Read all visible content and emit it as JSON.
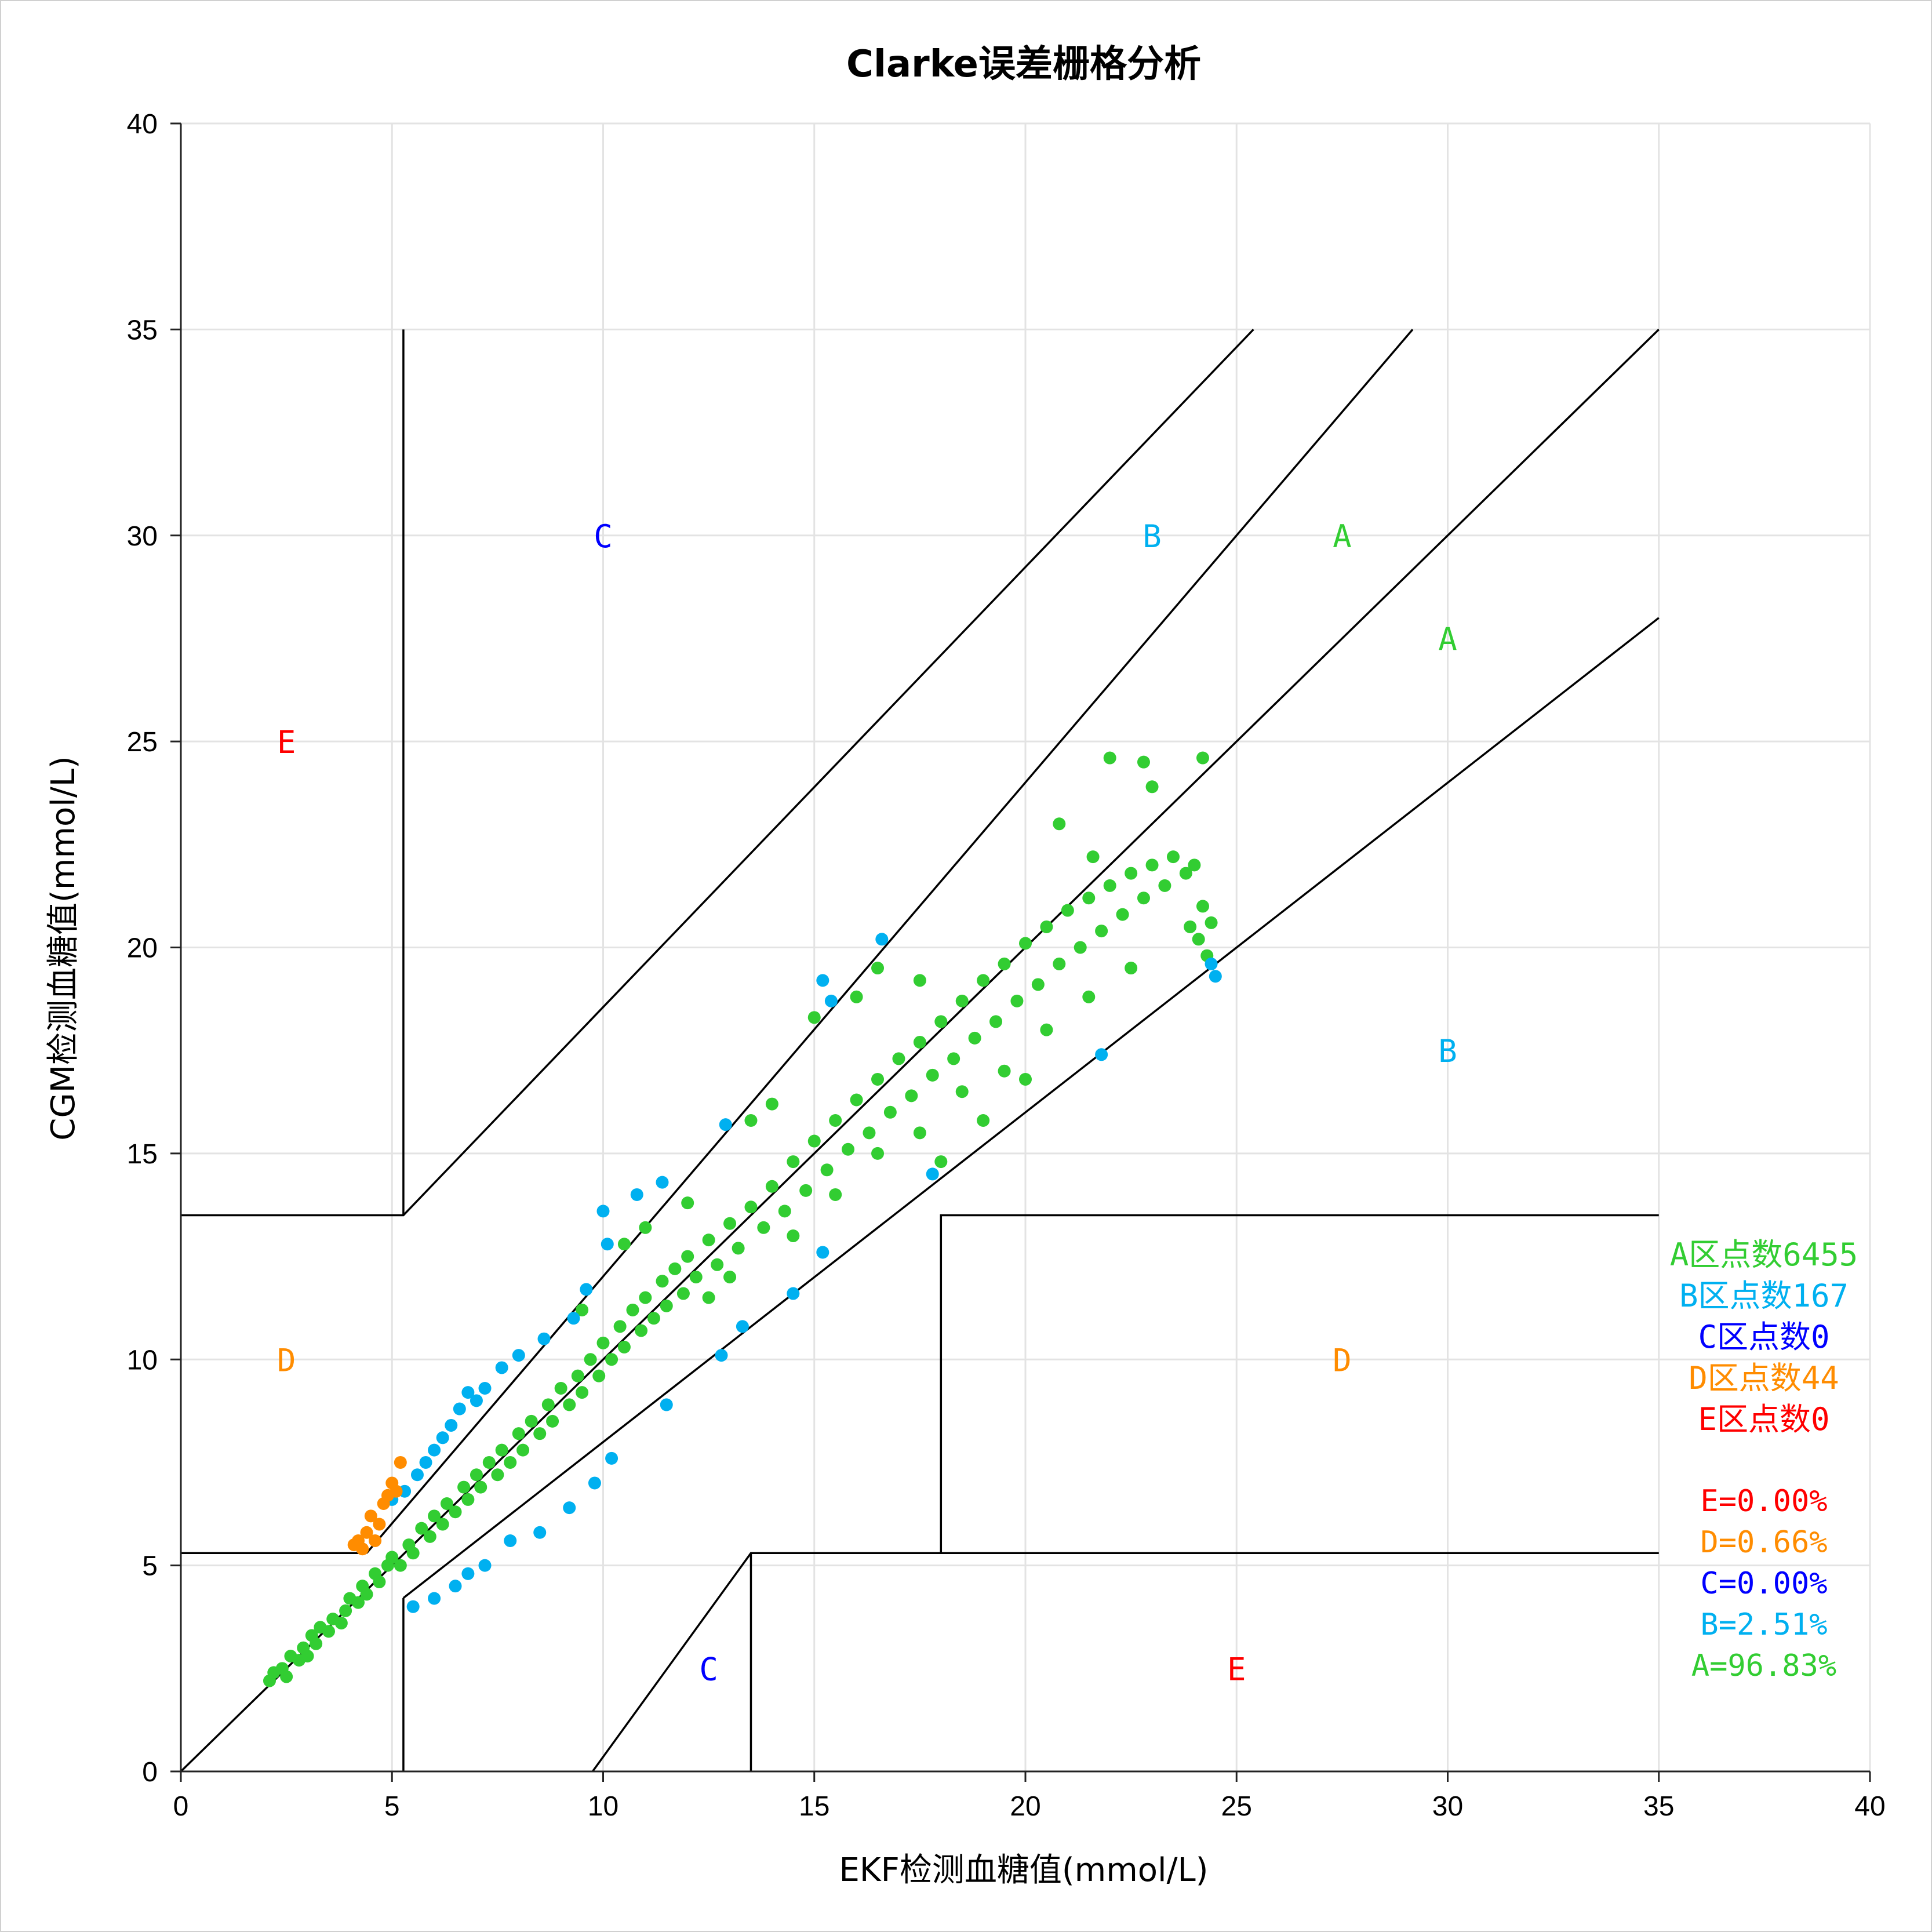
{
  "chart_data": {
    "type": "scatter",
    "title": "Clarke误差栅格分析",
    "xlabel": "EKF检测血糖值(mmol/L)",
    "ylabel": "CGM检测血糖值(mmol/L)",
    "xlim": [
      0,
      40
    ],
    "ylim": [
      0,
      40
    ],
    "x_ticks": [
      "0",
      "5",
      "10",
      "15",
      "20",
      "25",
      "30",
      "35",
      "40"
    ],
    "y_ticks": [
      "0",
      "5",
      "10",
      "15",
      "20",
      "25",
      "30",
      "35",
      "40"
    ],
    "grid": true,
    "colors": {
      "A": "#32cd32",
      "B": "#00b0f0",
      "C": "#0000ff",
      "D": "#ff8c00",
      "E": "#ff0000"
    },
    "zone_labels": [
      {
        "text": "E",
        "zone": "E",
        "x": 2.5,
        "y": 25
      },
      {
        "text": "C",
        "zone": "C",
        "x": 10,
        "y": 30
      },
      {
        "text": "B",
        "zone": "B",
        "x": 23,
        "y": 30
      },
      {
        "text": "A",
        "zone": "A",
        "x": 27.5,
        "y": 30
      },
      {
        "text": "A",
        "zone": "A",
        "x": 30,
        "y": 27.5
      },
      {
        "text": "B",
        "zone": "B",
        "x": 30,
        "y": 17.5
      },
      {
        "text": "D",
        "zone": "D",
        "x": 2.5,
        "y": 10
      },
      {
        "text": "D",
        "zone": "D",
        "x": 27.5,
        "y": 10
      },
      {
        "text": "C",
        "zone": "C",
        "x": 12.5,
        "y": 2.5
      },
      {
        "text": "E",
        "zone": "E",
        "x": 25,
        "y": 2.5
      }
    ],
    "zone_boundaries": [
      {
        "points": [
          [
            0,
            0
          ],
          [
            35,
            35
          ]
        ]
      },
      {
        "points": [
          [
            5.27,
            4.21
          ],
          [
            35,
            28
          ]
        ]
      },
      {
        "points": [
          [
            4.4,
            5.3
          ],
          [
            29.17,
            35
          ]
        ]
      },
      {
        "points": [
          [
            0,
            13.5
          ],
          [
            5.27,
            13.5
          ],
          [
            25.4,
            35
          ]
        ]
      },
      {
        "points": [
          [
            0,
            5.3
          ],
          [
            4.4,
            5.3
          ]
        ]
      },
      {
        "points": [
          [
            5.27,
            0
          ],
          [
            5.27,
            4.21
          ]
        ]
      },
      {
        "points": [
          [
            5.27,
            13.5
          ],
          [
            5.27,
            35
          ]
        ]
      },
      {
        "points": [
          [
            9.75,
            0
          ],
          [
            13.5,
            5.3
          ],
          [
            35,
            5.3
          ]
        ]
      },
      {
        "points": [
          [
            13.5,
            0
          ],
          [
            13.5,
            5.3
          ]
        ]
      },
      {
        "points": [
          [
            18,
            5.3
          ],
          [
            18,
            13.5
          ],
          [
            35,
            13.5
          ]
        ]
      }
    ],
    "series": [
      {
        "name": "A",
        "zone": "A",
        "values": [
          [
            2.1,
            2.2
          ],
          [
            2.2,
            2.4
          ],
          [
            2.4,
            2.5
          ],
          [
            2.5,
            2.3
          ],
          [
            2.6,
            2.8
          ],
          [
            2.8,
            2.7
          ],
          [
            2.9,
            3.0
          ],
          [
            3.0,
            2.8
          ],
          [
            3.1,
            3.3
          ],
          [
            3.2,
            3.1
          ],
          [
            3.3,
            3.5
          ],
          [
            3.5,
            3.4
          ],
          [
            3.6,
            3.7
          ],
          [
            3.8,
            3.6
          ],
          [
            3.9,
            3.9
          ],
          [
            4.0,
            4.2
          ],
          [
            4.2,
            4.1
          ],
          [
            4.3,
            4.5
          ],
          [
            4.4,
            4.3
          ],
          [
            4.6,
            4.8
          ],
          [
            4.7,
            4.6
          ],
          [
            4.9,
            5.0
          ],
          [
            5.0,
            5.2
          ],
          [
            5.2,
            5.0
          ],
          [
            5.4,
            5.5
          ],
          [
            5.5,
            5.3
          ],
          [
            5.7,
            5.9
          ],
          [
            5.9,
            5.7
          ],
          [
            6.0,
            6.2
          ],
          [
            6.2,
            6.0
          ],
          [
            6.3,
            6.5
          ],
          [
            6.5,
            6.3
          ],
          [
            6.7,
            6.9
          ],
          [
            6.8,
            6.6
          ],
          [
            7.0,
            7.2
          ],
          [
            7.1,
            6.9
          ],
          [
            7.3,
            7.5
          ],
          [
            7.5,
            7.2
          ],
          [
            7.6,
            7.8
          ],
          [
            7.8,
            7.5
          ],
          [
            8.0,
            8.2
          ],
          [
            8.1,
            7.8
          ],
          [
            8.3,
            8.5
          ],
          [
            8.5,
            8.2
          ],
          [
            8.7,
            8.9
          ],
          [
            8.8,
            8.5
          ],
          [
            9.0,
            9.3
          ],
          [
            9.2,
            8.9
          ],
          [
            9.4,
            9.6
          ],
          [
            9.5,
            9.2
          ],
          [
            9.7,
            10.0
          ],
          [
            9.9,
            9.6
          ],
          [
            10.0,
            10.4
          ],
          [
            10.2,
            10.0
          ],
          [
            10.4,
            10.8
          ],
          [
            10.5,
            10.3
          ],
          [
            10.7,
            11.2
          ],
          [
            10.9,
            10.7
          ],
          [
            11.0,
            11.5
          ],
          [
            11.2,
            11.0
          ],
          [
            11.4,
            11.9
          ],
          [
            11.5,
            11.3
          ],
          [
            11.7,
            12.2
          ],
          [
            11.9,
            11.6
          ],
          [
            12.0,
            12.5
          ],
          [
            12.2,
            12.0
          ],
          [
            12.5,
            12.9
          ],
          [
            12.7,
            12.3
          ],
          [
            13.0,
            13.3
          ],
          [
            13.2,
            12.7
          ],
          [
            13.5,
            13.7
          ],
          [
            13.8,
            13.2
          ],
          [
            14.0,
            14.2
          ],
          [
            14.3,
            13.6
          ],
          [
            14.5,
            14.8
          ],
          [
            14.8,
            14.1
          ],
          [
            15.0,
            15.3
          ],
          [
            15.3,
            14.6
          ],
          [
            15.5,
            15.8
          ],
          [
            15.8,
            15.1
          ],
          [
            16.0,
            16.3
          ],
          [
            16.3,
            15.5
          ],
          [
            16.5,
            16.8
          ],
          [
            16.8,
            16.0
          ],
          [
            17.0,
            17.3
          ],
          [
            17.3,
            16.4
          ],
          [
            17.5,
            17.7
          ],
          [
            17.8,
            16.9
          ],
          [
            18.0,
            18.2
          ],
          [
            18.3,
            17.3
          ],
          [
            18.5,
            18.7
          ],
          [
            18.8,
            17.8
          ],
          [
            19.0,
            19.2
          ],
          [
            19.3,
            18.2
          ],
          [
            19.5,
            19.6
          ],
          [
            19.8,
            18.7
          ],
          [
            20.0,
            20.1
          ],
          [
            20.3,
            19.1
          ],
          [
            20.5,
            20.5
          ],
          [
            20.8,
            19.6
          ],
          [
            21.0,
            20.9
          ],
          [
            21.3,
            20.0
          ],
          [
            21.5,
            21.2
          ],
          [
            21.8,
            20.4
          ],
          [
            22.0,
            21.5
          ],
          [
            22.3,
            20.8
          ],
          [
            22.5,
            21.8
          ],
          [
            22.8,
            21.2
          ],
          [
            23.0,
            22.0
          ],
          [
            23.3,
            21.5
          ],
          [
            23.5,
            22.2
          ],
          [
            23.8,
            21.8
          ],
          [
            24.0,
            22.0
          ],
          [
            24.2,
            21.0
          ],
          [
            24.4,
            20.6
          ],
          [
            24.3,
            19.8
          ],
          [
            24.1,
            20.2
          ],
          [
            23.9,
            20.5
          ],
          [
            22.0,
            24.6
          ],
          [
            22.8,
            24.5
          ],
          [
            23.0,
            23.9
          ],
          [
            24.2,
            24.6
          ],
          [
            20.8,
            23.0
          ],
          [
            21.6,
            22.2
          ],
          [
            16.0,
            18.8
          ],
          [
            15.0,
            18.3
          ],
          [
            16.5,
            19.5
          ],
          [
            17.5,
            19.2
          ],
          [
            14.0,
            16.2
          ],
          [
            13.5,
            15.8
          ],
          [
            12.0,
            13.8
          ],
          [
            11.0,
            13.2
          ],
          [
            10.5,
            12.8
          ],
          [
            9.5,
            11.2
          ],
          [
            12.5,
            11.5
          ],
          [
            13.0,
            12.0
          ],
          [
            14.5,
            13.0
          ],
          [
            15.5,
            14.0
          ],
          [
            16.5,
            15.0
          ],
          [
            17.5,
            15.5
          ],
          [
            18.5,
            16.5
          ],
          [
            19.5,
            17.0
          ],
          [
            20.5,
            18.0
          ],
          [
            21.5,
            18.8
          ],
          [
            22.5,
            19.5
          ],
          [
            19.0,
            15.8
          ],
          [
            20.0,
            16.8
          ],
          [
            18.0,
            14.8
          ]
        ]
      },
      {
        "name": "B",
        "zone": "B",
        "values": [
          [
            5.0,
            6.6
          ],
          [
            5.3,
            6.8
          ],
          [
            5.6,
            7.2
          ],
          [
            5.8,
            7.5
          ],
          [
            6.0,
            7.8
          ],
          [
            6.2,
            8.1
          ],
          [
            6.4,
            8.4
          ],
          [
            6.6,
            8.8
          ],
          [
            6.8,
            9.2
          ],
          [
            7.0,
            9.0
          ],
          [
            7.2,
            9.3
          ],
          [
            7.6,
            9.8
          ],
          [
            8.0,
            10.1
          ],
          [
            8.6,
            10.5
          ],
          [
            9.3,
            11.0
          ],
          [
            9.6,
            11.7
          ],
          [
            10.1,
            12.8
          ],
          [
            10.0,
            13.6
          ],
          [
            10.8,
            14.0
          ],
          [
            11.4,
            14.3
          ],
          [
            12.9,
            15.7
          ],
          [
            15.2,
            19.2
          ],
          [
            15.4,
            18.7
          ],
          [
            16.6,
            20.2
          ],
          [
            5.5,
            4.0
          ],
          [
            6.0,
            4.2
          ],
          [
            6.5,
            4.5
          ],
          [
            6.8,
            4.8
          ],
          [
            7.2,
            5.0
          ],
          [
            7.8,
            5.6
          ],
          [
            8.5,
            5.8
          ],
          [
            9.2,
            6.4
          ],
          [
            9.8,
            7.0
          ],
          [
            10.2,
            7.6
          ],
          [
            11.5,
            8.9
          ],
          [
            12.8,
            10.1
          ],
          [
            13.3,
            10.8
          ],
          [
            14.5,
            11.6
          ],
          [
            15.2,
            12.6
          ],
          [
            17.8,
            14.5
          ],
          [
            21.8,
            17.4
          ],
          [
            24.5,
            19.3
          ],
          [
            24.4,
            19.6
          ]
        ]
      },
      {
        "name": "D",
        "zone": "D",
        "values": [
          [
            4.1,
            5.5
          ],
          [
            4.2,
            5.6
          ],
          [
            4.4,
            5.8
          ],
          [
            4.5,
            6.2
          ],
          [
            4.7,
            6.0
          ],
          [
            4.8,
            6.5
          ],
          [
            4.9,
            6.7
          ],
          [
            5.0,
            7.0
          ],
          [
            5.1,
            6.8
          ],
          [
            5.2,
            7.5
          ],
          [
            4.6,
            5.6
          ],
          [
            4.3,
            5.4
          ]
        ]
      }
    ],
    "zone_counts": [
      {
        "text": "A区点数6455",
        "zone": "A"
      },
      {
        "text": "B区点数167",
        "zone": "B"
      },
      {
        "text": "C区点数0",
        "zone": "C"
      },
      {
        "text": "D区点数44",
        "zone": "D"
      },
      {
        "text": "E区点数0",
        "zone": "E"
      }
    ],
    "zone_percents": [
      {
        "text": "E=0.00%",
        "zone": "E"
      },
      {
        "text": "D=0.66%",
        "zone": "D"
      },
      {
        "text": "C=0.00%",
        "zone": "C"
      },
      {
        "text": "B=2.51%",
        "zone": "B"
      },
      {
        "text": "A=96.83%",
        "zone": "A"
      }
    ]
  }
}
